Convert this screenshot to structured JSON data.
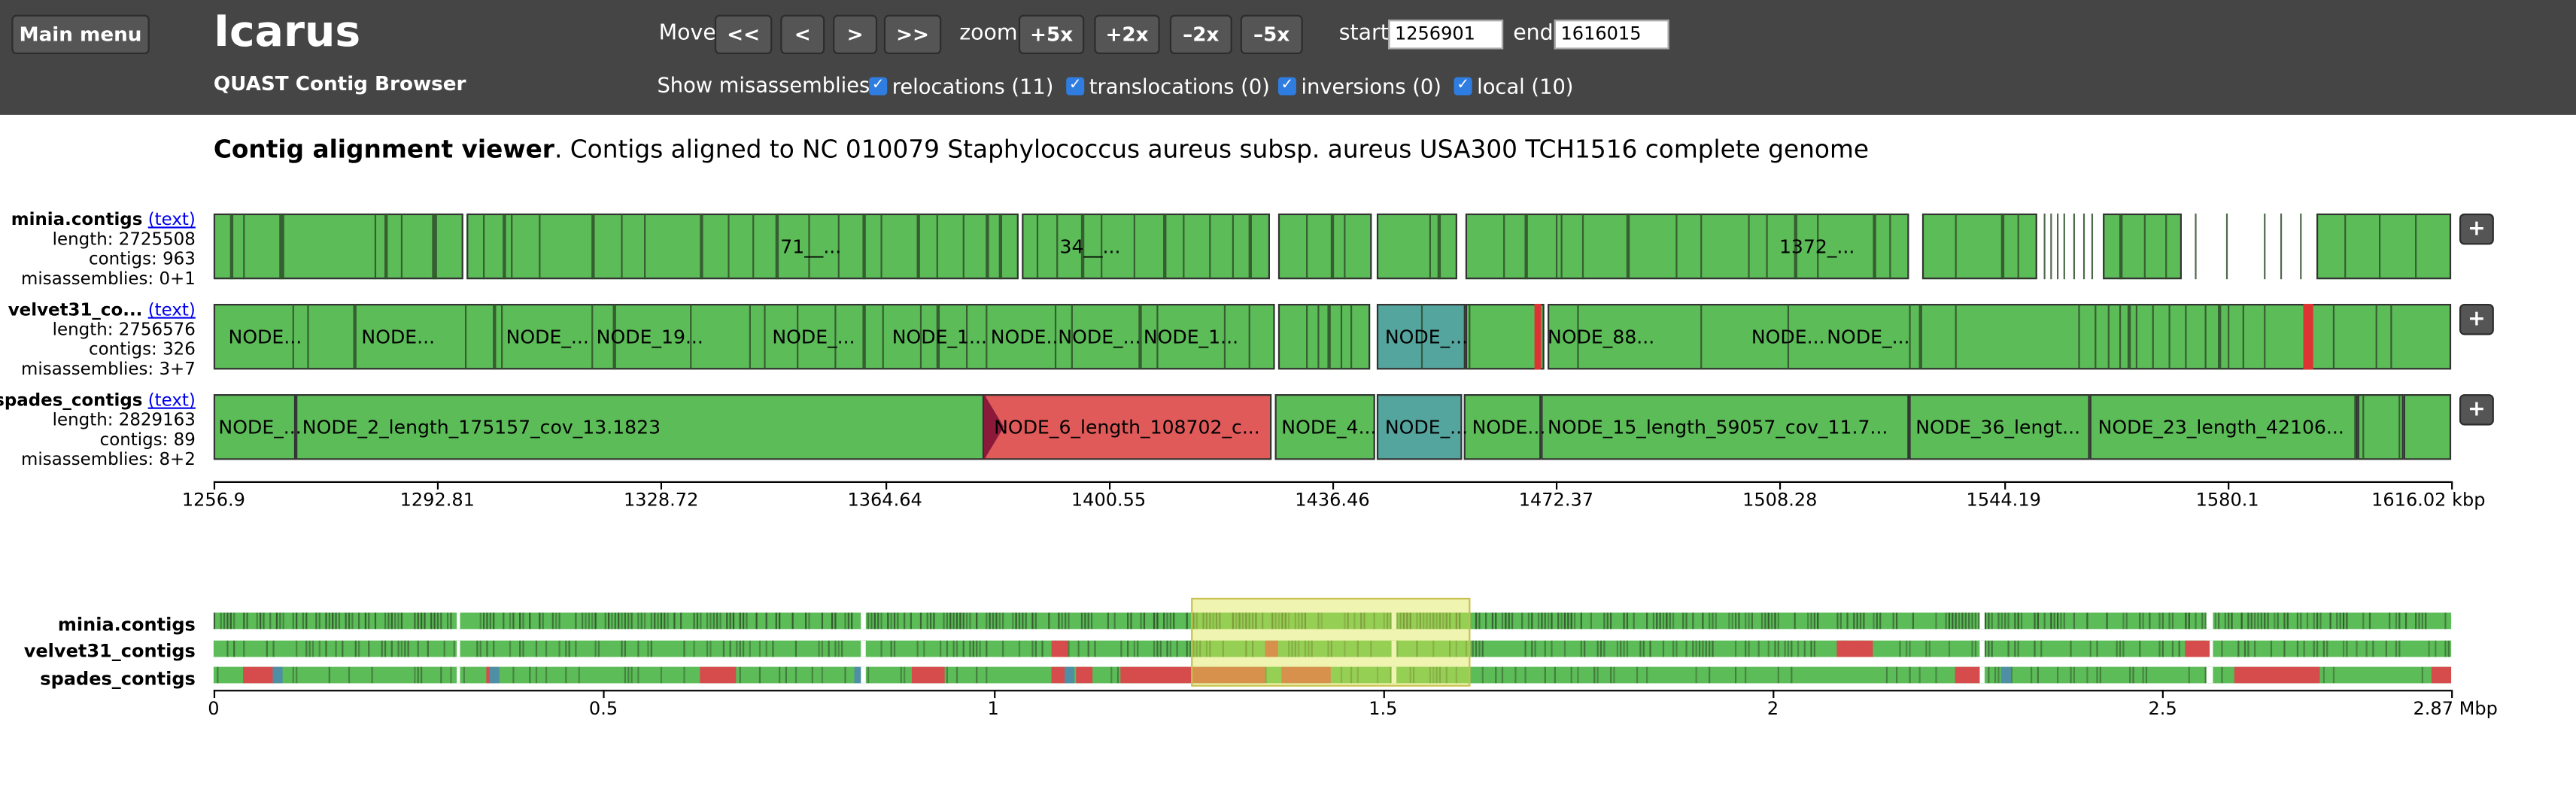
{
  "header": {
    "main_menu": "Main menu",
    "title": "Icarus",
    "subtitle": "QUAST Contig Browser",
    "move_label": "Move",
    "move_buttons": [
      "<<",
      "<",
      ">",
      ">>"
    ],
    "zoom_label": "zoom",
    "zoom_buttons": [
      "+5x",
      "+2x",
      "–2x",
      "–5x"
    ],
    "start_label": "start",
    "start_value": "1256901",
    "end_label": "end",
    "end_value": "1616015",
    "misassemblies_label": "Show misassemblies:",
    "checkboxes": [
      {
        "label": "relocations (11)",
        "checked": true
      },
      {
        "label": "translocations (0)",
        "checked": true
      },
      {
        "label": "inversions (0)",
        "checked": true
      },
      {
        "label": "local (10)",
        "checked": true
      }
    ]
  },
  "caption": {
    "bold": "Contig alignment viewer",
    "rest": ". Contigs aligned to NC 010079 Staphylococcus aureus subsp. aureus USA300 TCH1516 complete genome"
  },
  "colors": {
    "header_bg": "#454545",
    "contig_green": "#5cbc58",
    "misassembly_red": "#e05a5a",
    "ambiguous_teal": "#55a59f",
    "checkbox_blue": "#2f7de1"
  },
  "tracks": [
    {
      "name": "minia.contigs",
      "text_link": "(text)",
      "length": "length: 2725508",
      "contigs": "contigs: 963",
      "misassemblies": "misassemblies: 0+1",
      "labels": [
        "71__...",
        "34__...",
        "1372_..."
      ]
    },
    {
      "name": "velvet31_co...",
      "text_link": "(text)",
      "length": "length: 2756576",
      "contigs": "contigs: 326",
      "misassemblies": "misassemblies: 3+7",
      "labels": [
        "NODE...",
        "NODE...",
        "NODE_...",
        "NODE_19...",
        "NODE_...",
        "NODE_1...",
        "NODE...",
        "NODE_...",
        "NODE_1...",
        "NODE_...",
        "NODE_88...",
        "NODE...",
        "NODE_..."
      ]
    },
    {
      "name": "spades_contigs",
      "text_link": "(text)",
      "length": "length: 2829163",
      "contigs": "contigs: 89",
      "misassemblies": "misassemblies: 8+2",
      "labels": [
        "NODE_...",
        "NODE_2_length_175157_cov_13.1823",
        "NODE_6_length_108702_c...",
        "NODE_4...",
        "NODE_...",
        "NODE...",
        "NODE_15_length_59057_cov_11.7...",
        "NODE_36_lengt...",
        "NODE_23_length_42106..."
      ]
    }
  ],
  "plus_label": "+",
  "axis_top": {
    "ticks": [
      "1256.9",
      "1292.81",
      "1328.72",
      "1364.64",
      "1400.55",
      "1436.46",
      "1472.37",
      "1508.28",
      "1544.19",
      "1580.1",
      "1616.02 kbp"
    ]
  },
  "overview": {
    "names": [
      "minia.contigs",
      "velvet31_contigs",
      "spades_contigs"
    ],
    "ticks": [
      "0",
      "0.5",
      "1",
      "1.5",
      "2",
      "2.5",
      "2.87 Mbp"
    ]
  }
}
